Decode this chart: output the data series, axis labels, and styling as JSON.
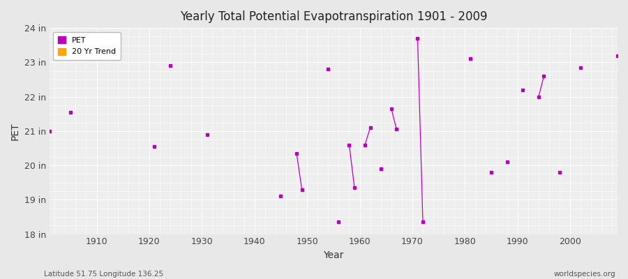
{
  "title": "Yearly Total Potential Evapotranspiration 1901 - 2009",
  "xlabel": "Year",
  "ylabel": "PET",
  "subtitle_left": "Latitude 51.75 Longitude 136.25",
  "subtitle_right": "worldspecies.org",
  "ylim": [
    18,
    24
  ],
  "yticks": [
    18,
    19,
    20,
    21,
    22,
    23,
    24
  ],
  "ytick_labels": [
    "18 in",
    "19 in",
    "20 in",
    "21 in",
    "22 in",
    "23 in",
    "24 in"
  ],
  "xlim": [
    1901,
    2009
  ],
  "line_color": "#BB00BB",
  "trend_color": "#FFA500",
  "bg_color": "#E8E8E8",
  "plot_bg_color": "#EEEEEE",
  "grid_color": "#FFFFFF",
  "legend_entries": [
    "PET",
    "20 Yr Trend"
  ],
  "legend_colors": [
    "#BB00BB",
    "#FFA500"
  ],
  "years": [
    1901,
    1902,
    1903,
    1904,
    1905,
    1906,
    1907,
    1908,
    1909,
    1910,
    1911,
    1912,
    1913,
    1914,
    1915,
    1916,
    1917,
    1918,
    1919,
    1920,
    1921,
    1922,
    1923,
    1924,
    1925,
    1926,
    1927,
    1928,
    1929,
    1930,
    1931,
    1932,
    1933,
    1934,
    1935,
    1936,
    1937,
    1938,
    1939,
    1940,
    1941,
    1942,
    1943,
    1944,
    1945,
    1946,
    1947,
    1948,
    1949,
    1950,
    1951,
    1952,
    1953,
    1954,
    1955,
    1956,
    1957,
    1958,
    1959,
    1960,
    1961,
    1962,
    1963,
    1964,
    1965,
    1966,
    1967,
    1968,
    1969,
    1970,
    1971,
    1972,
    1973,
    1974,
    1975,
    1976,
    1977,
    1978,
    1979,
    1980,
    1981,
    1982,
    1983,
    1984,
    1985,
    1986,
    1987,
    1988,
    1989,
    1990,
    1991,
    1992,
    1993,
    1994,
    1995,
    1996,
    1997,
    1998,
    1999,
    2000,
    2001,
    2002,
    2003,
    2004,
    2005,
    2006,
    2007,
    2008,
    2009
  ],
  "values": [
    21.0,
    null,
    null,
    null,
    21.55,
    null,
    null,
    null,
    null,
    null,
    null,
    null,
    null,
    null,
    null,
    null,
    null,
    null,
    null,
    null,
    20.55,
    null,
    null,
    22.9,
    null,
    null,
    null,
    null,
    null,
    null,
    20.9,
    null,
    null,
    null,
    null,
    null,
    null,
    null,
    null,
    null,
    null,
    null,
    null,
    null,
    19.1,
    null,
    null,
    20.35,
    19.3,
    null,
    null,
    null,
    null,
    22.8,
    null,
    18.35,
    null,
    20.6,
    19.35,
    null,
    20.6,
    21.1,
    null,
    19.9,
    null,
    21.65,
    21.05,
    null,
    null,
    null,
    23.7,
    18.35,
    null,
    null,
    null,
    null,
    null,
    null,
    null,
    null,
    23.1,
    null,
    null,
    null,
    19.8,
    null,
    null,
    20.1,
    null,
    null,
    22.2,
    null,
    null,
    22.0,
    22.6,
    null,
    null,
    19.8,
    null,
    null,
    null,
    22.85,
    null,
    null,
    null,
    null,
    null,
    null,
    23.2
  ]
}
